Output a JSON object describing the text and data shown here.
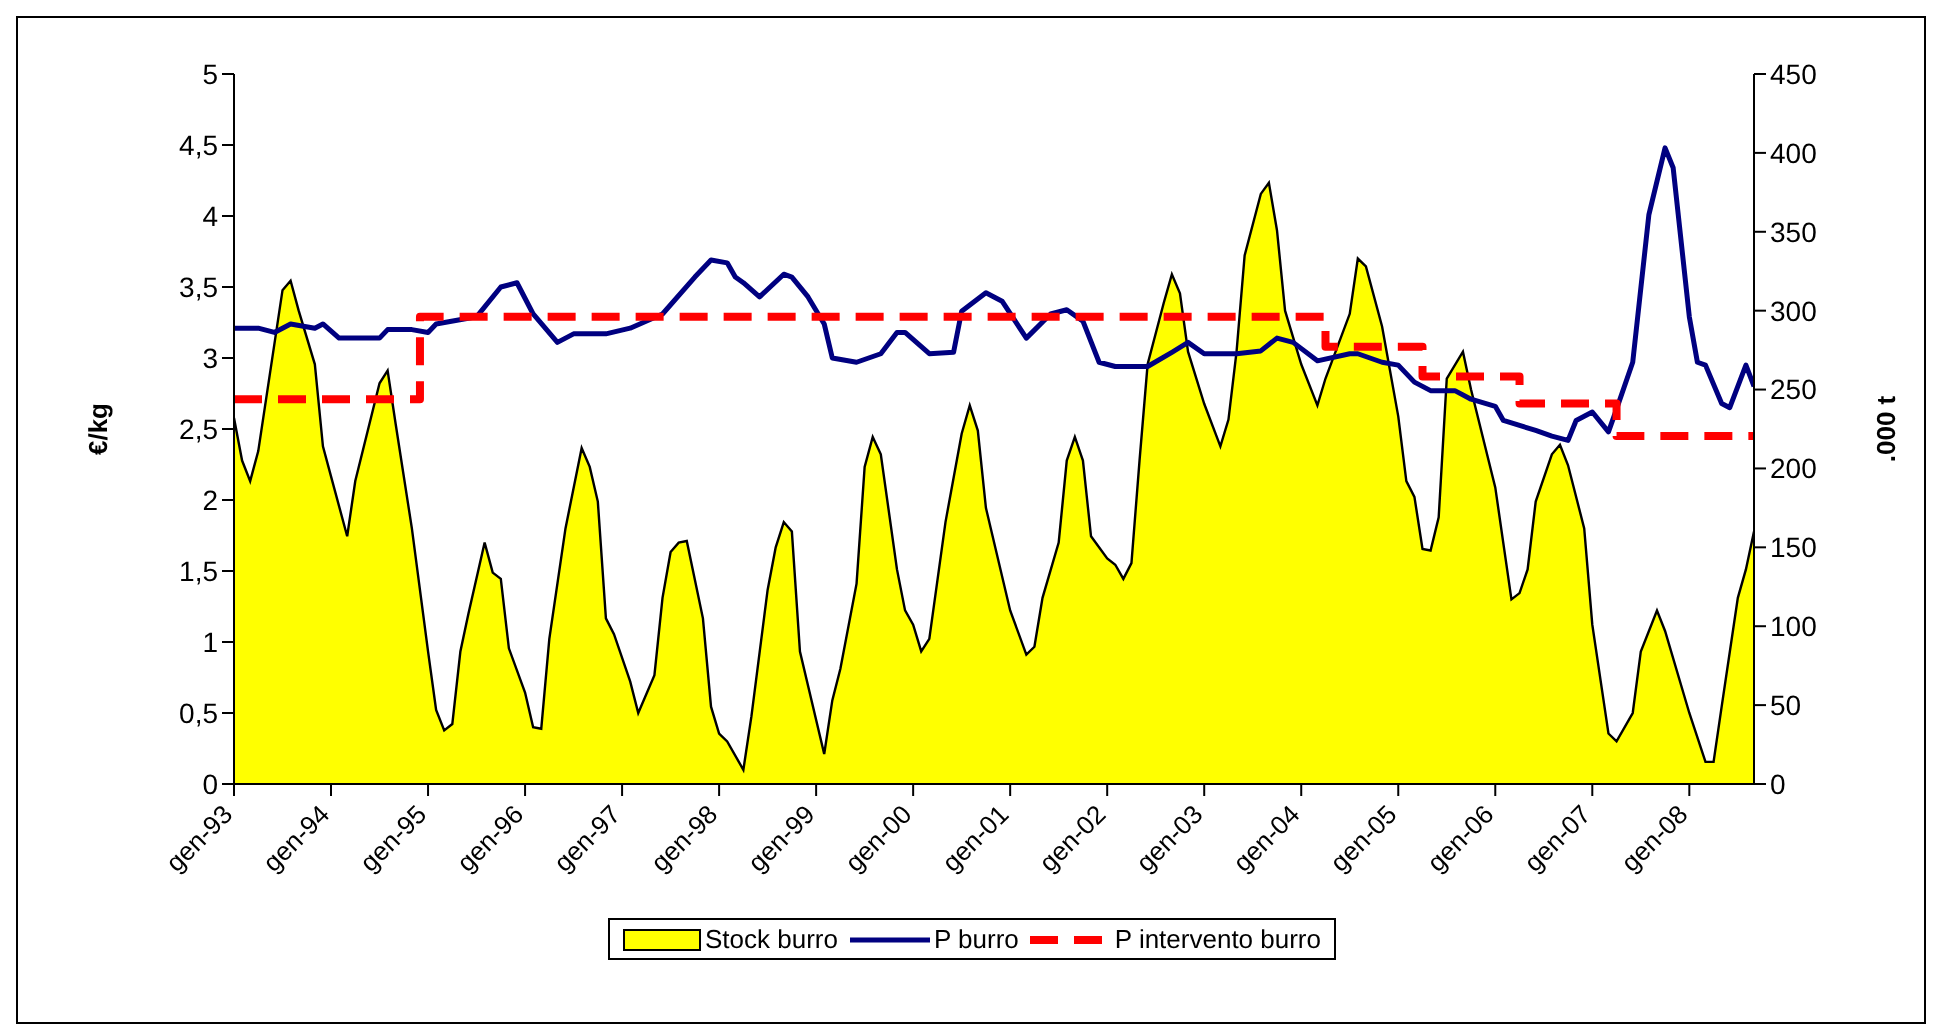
{
  "chart_data": {
    "type": "line",
    "ylabel": "€/kg",
    "y2label": ".000 t",
    "xlim": [
      "1993-01",
      "2008-09"
    ],
    "xticks": [
      {
        "value": "1993-01",
        "label": "gen-93"
      },
      {
        "value": "1994-01",
        "label": "gen-94"
      },
      {
        "value": "1995-01",
        "label": "gen-95"
      },
      {
        "value": "1996-01",
        "label": "gen-96"
      },
      {
        "value": "1997-01",
        "label": "gen-97"
      },
      {
        "value": "1998-01",
        "label": "gen-98"
      },
      {
        "value": "1999-01",
        "label": "gen-99"
      },
      {
        "value": "2000-01",
        "label": "gen-00"
      },
      {
        "value": "2001-01",
        "label": "gen-01"
      },
      {
        "value": "2002-01",
        "label": "gen-02"
      },
      {
        "value": "2003-01",
        "label": "gen-03"
      },
      {
        "value": "2004-01",
        "label": "gen-04"
      },
      {
        "value": "2005-01",
        "label": "gen-05"
      },
      {
        "value": "2006-01",
        "label": "gen-06"
      },
      {
        "value": "2007-01",
        "label": "gen-07"
      },
      {
        "value": "2008-01",
        "label": "gen-08"
      }
    ],
    "ylim": [
      0,
      5
    ],
    "yticks": [
      0,
      {
        "value": 0.5,
        "label": "0,5"
      },
      1,
      {
        "value": 1.5,
        "label": "1,5"
      },
      2,
      {
        "value": 2.5,
        "label": "2,5"
      },
      3,
      {
        "value": 3.5,
        "label": "3,5"
      },
      4,
      {
        "value": 4.5,
        "label": "4,5"
      },
      5
    ],
    "y2lim": [
      0,
      450
    ],
    "y2ticks": [
      0,
      50,
      100,
      150,
      200,
      250,
      300,
      350,
      400,
      450
    ],
    "grid": false,
    "legend": "bottom",
    "marker": "none",
    "series": [
      {
        "name": "Stock burro",
        "type": "area",
        "axis": "y2",
        "color": "#ffff00",
        "x": [
          "1993-01",
          "1993-02",
          "1993-03",
          "1993-04",
          "1993-07",
          "1993-08",
          "1993-09",
          "1993-11",
          "1993-12",
          "1994-01",
          "1994-03",
          "1994-04",
          "1994-07",
          "1994-08",
          "1994-09",
          "1994-11",
          "1995-01",
          "1995-02",
          "1995-03",
          "1995-04",
          "1995-05",
          "1995-06",
          "1995-08",
          "1995-09",
          "1995-10",
          "1995-11",
          "1996-01",
          "1996-02",
          "1996-03",
          "1996-04",
          "1996-06",
          "1996-08",
          "1996-09",
          "1996-10",
          "1996-11",
          "1996-12",
          "1997-02",
          "1997-03",
          "1997-05",
          "1997-06",
          "1997-07",
          "1997-08",
          "1997-09",
          "1997-11",
          "1997-12",
          "1998-01",
          "1998-02",
          "1998-04",
          "1998-05",
          "1998-07",
          "1998-08",
          "1998-09",
          "1998-10",
          "1998-11",
          "1999-02",
          "1999-03",
          "1999-04",
          "1999-06",
          "1999-07",
          "1999-08",
          "1999-09",
          "1999-11",
          "1999-12",
          "2000-01",
          "2000-02",
          "2000-03",
          "2000-05",
          "2000-07",
          "2000-08",
          "2000-09",
          "2000-10",
          "2001-01",
          "2001-03",
          "2001-04",
          "2001-05",
          "2001-07",
          "2001-08",
          "2001-09",
          "2001-10",
          "2001-11",
          "2002-01",
          "2002-02",
          "2002-03",
          "2002-04",
          "2002-05",
          "2002-06",
          "2002-08",
          "2002-09",
          "2002-10",
          "2002-11",
          "2003-01",
          "2003-03",
          "2003-04",
          "2003-05",
          "2003-06",
          "2003-08",
          "2003-09",
          "2003-10",
          "2003-11",
          "2004-01",
          "2004-03",
          "2004-04",
          "2004-07",
          "2004-08",
          "2004-09",
          "2004-11",
          "2005-01",
          "2005-02",
          "2005-03",
          "2005-04",
          "2005-05",
          "2005-06",
          "2005-07",
          "2005-09",
          "2005-10",
          "2006-01",
          "2006-03",
          "2006-04",
          "2006-05",
          "2006-06",
          "2006-08",
          "2006-09",
          "2006-10",
          "2006-12",
          "2007-01",
          "2007-03",
          "2007-04",
          "2007-06",
          "2007-07",
          "2007-09",
          "2007-10",
          "2008-01",
          "2008-03",
          "2008-04",
          "2008-05",
          "2008-07",
          "2008-08",
          "2008-09"
        ],
        "values": [
          232,
          205,
          192,
          211,
          313,
          319,
          300,
          266,
          214,
          195,
          157,
          192,
          254,
          262,
          228,
          162,
          84,
          47,
          34,
          38,
          84,
          108,
          153,
          134,
          130,
          86,
          58,
          36,
          35,
          92,
          162,
          213,
          201,
          179,
          105,
          95,
          65,
          45,
          69,
          118,
          147,
          153,
          154,
          105,
          49,
          32,
          27,
          9,
          43,
          123,
          150,
          166,
          160,
          84,
          19,
          53,
          73,
          127,
          201,
          220,
          209,
          136,
          110,
          101,
          84,
          92,
          166,
          222,
          240,
          224,
          175,
          110,
          82,
          87,
          118,
          153,
          205,
          220,
          205,
          157,
          143,
          139,
          130,
          140,
          205,
          266,
          305,
          323,
          311,
          274,
          241,
          214,
          231,
          274,
          335,
          374,
          381,
          351,
          300,
          266,
          240,
          257,
          298,
          333,
          328,
          290,
          233,
          192,
          182,
          149,
          148,
          169,
          257,
          274,
          250,
          188,
          117,
          121,
          136,
          179,
          209,
          215,
          202,
          162,
          101,
          32,
          27,
          45,
          84,
          110,
          97,
          45,
          14,
          14,
          49,
          118,
          136,
          160
        ]
      },
      {
        "name": "P burro",
        "color": "#000080",
        "x": [
          "1993-01",
          "1993-04",
          "1993-06",
          "1993-08",
          "1993-11",
          "1993-12",
          "1994-02",
          "1994-07",
          "1994-08",
          "1994-11",
          "1995-01",
          "1995-02",
          "1995-07",
          "1995-10",
          "1995-12",
          "1996-02",
          "1996-05",
          "1996-07",
          "1996-11",
          "1997-02",
          "1997-06",
          "1997-10",
          "1997-12",
          "1998-02",
          "1998-03",
          "1998-04",
          "1998-06",
          "1998-09",
          "1998-10",
          "1998-12",
          "1999-02",
          "1999-03",
          "1999-06",
          "1999-09",
          "1999-11",
          "1999-12",
          "2000-03",
          "2000-06",
          "2000-07",
          "2000-10",
          "2000-12",
          "2001-03",
          "2001-06",
          "2001-08",
          "2001-10",
          "2001-12",
          "2002-02",
          "2002-06",
          "2002-09",
          "2002-11",
          "2003-01",
          "2003-05",
          "2003-08",
          "2003-10",
          "2003-12",
          "2004-03",
          "2004-07",
          "2004-08",
          "2004-11",
          "2005-01",
          "2005-03",
          "2005-05",
          "2005-08",
          "2005-10",
          "2006-01",
          "2006-02",
          "2006-06",
          "2006-08",
          "2006-10",
          "2006-11",
          "2007-01",
          "2007-03",
          "2007-04",
          "2007-06",
          "2007-08",
          "2007-10",
          "2007-11",
          "2008-01",
          "2008-02",
          "2008-03",
          "2008-05",
          "2008-06",
          "2008-08",
          "2008-09"
        ],
        "values": [
          3.21,
          3.21,
          3.18,
          3.24,
          3.21,
          3.24,
          3.14,
          3.14,
          3.2,
          3.2,
          3.18,
          3.24,
          3.29,
          3.5,
          3.53,
          3.31,
          3.11,
          3.17,
          3.17,
          3.21,
          3.31,
          3.57,
          3.69,
          3.67,
          3.57,
          3.53,
          3.43,
          3.59,
          3.57,
          3.43,
          3.24,
          3.0,
          2.97,
          3.03,
          3.18,
          3.18,
          3.03,
          3.04,
          3.33,
          3.46,
          3.4,
          3.14,
          3.31,
          3.34,
          3.26,
          2.97,
          2.94,
          2.94,
          3.04,
          3.11,
          3.03,
          3.03,
          3.05,
          3.14,
          3.11,
          2.98,
          3.03,
          3.03,
          2.97,
          2.95,
          2.83,
          2.77,
          2.77,
          2.71,
          2.66,
          2.56,
          2.49,
          2.45,
          2.42,
          2.56,
          2.62,
          2.48,
          2.64,
          2.97,
          4.01,
          4.48,
          4.34,
          3.29,
          2.97,
          2.95,
          2.68,
          2.65,
          2.95,
          2.8
        ]
      },
      {
        "name": "P intervento burro",
        "type": "step",
        "line_style": "dashed",
        "color": "#ff0000",
        "x": [
          "1993-01",
          "1994-12",
          "2004-04",
          "2005-04",
          "2006-04",
          "2007-04",
          "2008-09"
        ],
        "values": [
          2.71,
          3.29,
          3.08,
          2.87,
          2.68,
          2.45,
          2.45
        ]
      }
    ]
  }
}
